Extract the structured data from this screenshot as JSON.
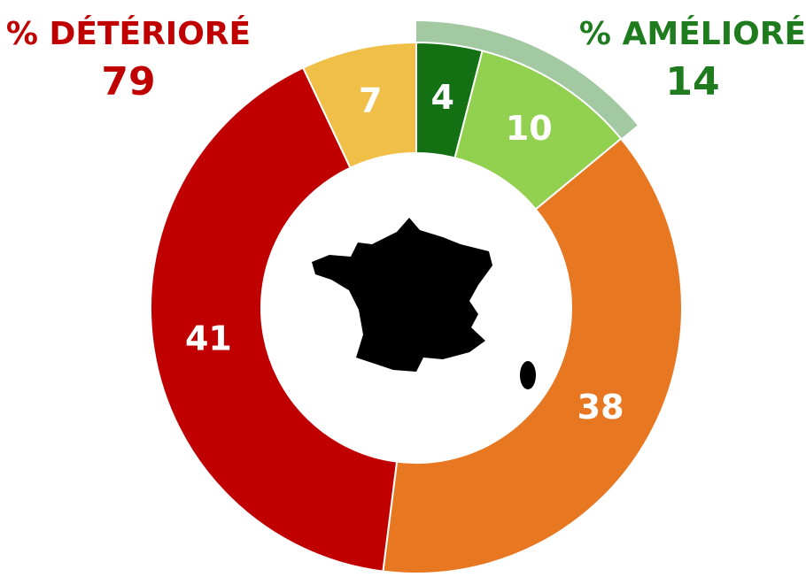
{
  "chart_data": {
    "type": "donut",
    "values": [
      4,
      10,
      38,
      41,
      7
    ],
    "colors": [
      "#137113",
      "#92d050",
      "#e87722",
      "#c00000",
      "#f0bf48"
    ],
    "annotations": [
      {
        "label": "% DÉTÉRIORÉ",
        "value": 79,
        "color": "#c00000"
      },
      {
        "label": "% AMÉLIORÉ",
        "value": 14,
        "color": "#1e7b1e"
      }
    ],
    "highlight_color": "#a3c9a3"
  }
}
